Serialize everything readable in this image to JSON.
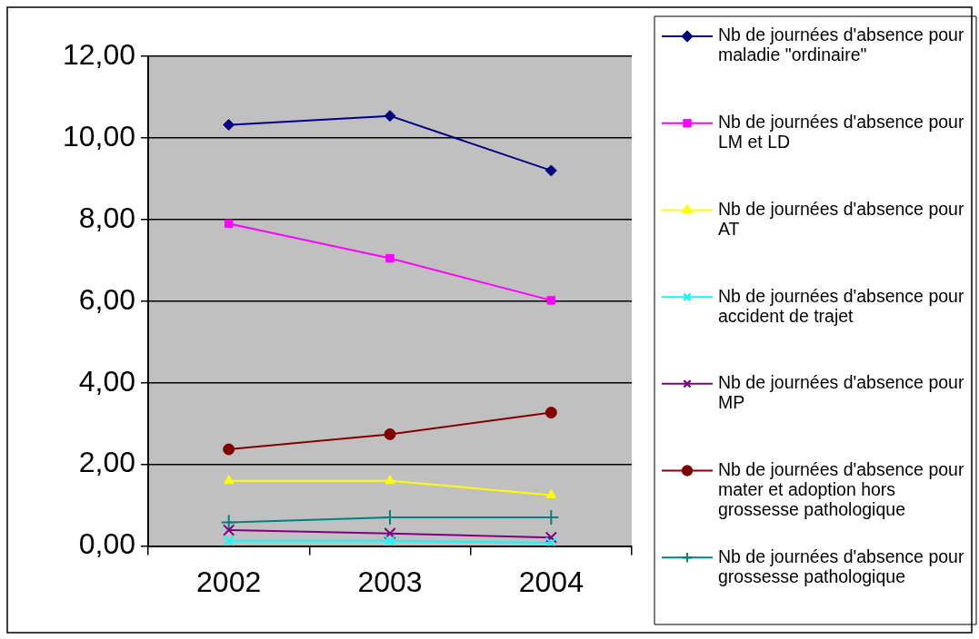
{
  "chart_data": {
    "type": "line",
    "categories": [
      "2002",
      "2003",
      "2004"
    ],
    "ylim": [
      0,
      12
    ],
    "yticks": [
      {
        "value": 0,
        "label": "0,00"
      },
      {
        "value": 2,
        "label": "2,00"
      },
      {
        "value": 4,
        "label": "4,00"
      },
      {
        "value": 6,
        "label": "6,00"
      },
      {
        "value": 8,
        "label": "8,00"
      },
      {
        "value": 10,
        "label": "10,00"
      },
      {
        "value": 12,
        "label": "12,00"
      }
    ],
    "grid": "y",
    "legend": "right",
    "line_style": "solid",
    "series": [
      {
        "name": "Nb de journées d'absence pour maladie \"ordinaire\"",
        "color": "#000080",
        "marker": "diamond",
        "values": [
          10.32,
          10.54,
          9.2
        ]
      },
      {
        "name": "Nb de journées d'absence pour LM et LD",
        "color": "#ff00ff",
        "marker": "square",
        "values": [
          7.9,
          7.05,
          6.02
        ]
      },
      {
        "name": "Nb de journées d'absence pour AT",
        "color": "#ffff00",
        "marker": "triangle",
        "values": [
          1.6,
          1.6,
          1.25
        ]
      },
      {
        "name": "Nb de journées d'absence pour accident de trajet",
        "color": "#00ffff",
        "marker": "cross",
        "values": [
          0.13,
          0.13,
          0.08
        ]
      },
      {
        "name": "Nb de journées d'absence pour MP",
        "color": "#800080",
        "marker": "cross",
        "values": [
          0.39,
          0.31,
          0.21
        ]
      },
      {
        "name": "Nb de journées d'absence pour mater et adoption hors grossesse pathologique",
        "color": "#800000",
        "marker": "circle",
        "values": [
          2.37,
          2.74,
          3.27
        ]
      },
      {
        "name": "Nb de journées d'absence pour grossesse pathologique",
        "color": "#008080",
        "marker": "plus",
        "values": [
          0.58,
          0.7,
          0.7
        ]
      }
    ]
  }
}
